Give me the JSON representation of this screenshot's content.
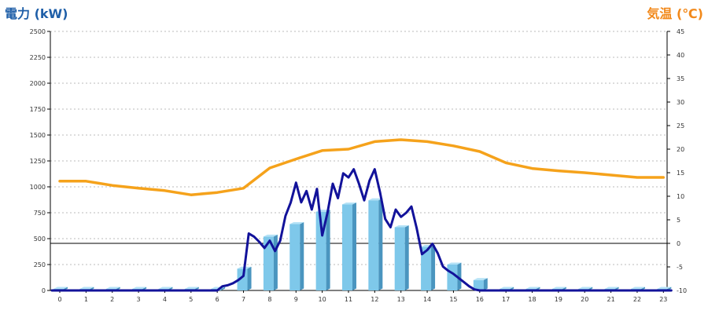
{
  "chart_data": {
    "type": "bar",
    "left_axis_title": "電力 (kW)",
    "right_axis_title": "気温 (℃)",
    "categories": [
      "0",
      "1",
      "2",
      "3",
      "4",
      "5",
      "6",
      "7",
      "8",
      "9",
      "10",
      "11",
      "12",
      "13",
      "14",
      "15",
      "16",
      "17",
      "18",
      "19",
      "20",
      "21",
      "22",
      "23"
    ],
    "left_ylim": [
      0,
      2500
    ],
    "left_ticks": [
      0,
      250,
      500,
      750,
      1000,
      1250,
      1500,
      1750,
      2000,
      2250,
      2500
    ],
    "right_ylim": [
      -10,
      45
    ],
    "right_ticks": [
      -10,
      -5,
      0,
      5,
      10,
      15,
      20,
      25,
      30,
      35,
      40,
      45
    ],
    "grid": true,
    "series": [
      {
        "kind": "bar",
        "axis": "left",
        "color": "#7ec8ea",
        "values": [
          15,
          15,
          15,
          15,
          15,
          15,
          15,
          210,
          520,
          640,
          760,
          830,
          870,
          610,
          420,
          250,
          100,
          15,
          15,
          15,
          15,
          15,
          15,
          15
        ]
      },
      {
        "kind": "line",
        "axis": "right",
        "color": "#f5a21b",
        "x": [
          0,
          1,
          2,
          3,
          4,
          5,
          6,
          7,
          8,
          9,
          10,
          11,
          12,
          13,
          14,
          15,
          16,
          17,
          18,
          19,
          20,
          21,
          22,
          23
        ],
        "values": [
          13.2,
          13.2,
          12.3,
          11.7,
          11.2,
          10.3,
          10.8,
          11.7,
          16.0,
          17.9,
          19.7,
          20.0,
          21.6,
          22.0,
          21.6,
          20.7,
          19.5,
          17.1,
          15.9,
          15.4,
          15.0,
          14.5,
          14.0,
          14.0
        ]
      },
      {
        "kind": "line",
        "axis": "left",
        "color": "#12129a",
        "x": [
          -0.3,
          5.8,
          6.0,
          6.2,
          6.4,
          6.6,
          6.8,
          7.0,
          7.2,
          7.4,
          7.6,
          7.8,
          8.0,
          8.2,
          8.4,
          8.6,
          8.8,
          9.0,
          9.2,
          9.4,
          9.6,
          9.8,
          10.0,
          10.2,
          10.4,
          10.6,
          10.8,
          11.0,
          11.2,
          11.4,
          11.6,
          11.8,
          12.0,
          12.2,
          12.4,
          12.6,
          12.8,
          13.0,
          13.2,
          13.4,
          13.6,
          13.8,
          14.0,
          14.2,
          14.4,
          14.6,
          14.8,
          15.0,
          15.2,
          15.4,
          15.6,
          15.8,
          16.0,
          16.2,
          16.4,
          23.3
        ],
        "values": [
          0,
          0,
          0,
          40,
          50,
          70,
          100,
          140,
          550,
          520,
          470,
          410,
          480,
          380,
          480,
          720,
          850,
          1040,
          850,
          960,
          780,
          980,
          530,
          750,
          1030,
          890,
          1130,
          1090,
          1170,
          1030,
          870,
          1060,
          1170,
          950,
          690,
          610,
          780,
          710,
          750,
          810,
          600,
          350,
          390,
          450,
          360,
          230,
          190,
          160,
          120,
          80,
          40,
          10,
          0,
          0,
          0,
          0
        ]
      }
    ]
  }
}
